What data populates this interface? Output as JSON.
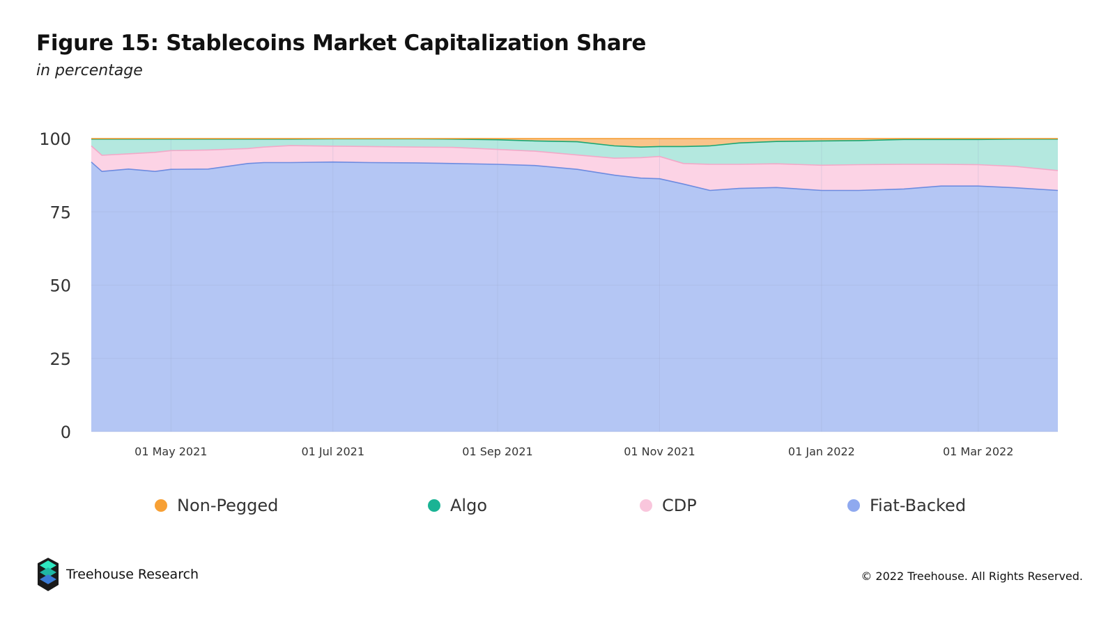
{
  "header": {
    "title": "Figure 15: Stablecoins Market Capitalization Share",
    "subtitle": "in percentage"
  },
  "footer": {
    "brand": "Treehouse Research",
    "copyright": "© 2022 Treehouse. All Rights Reserved."
  },
  "colors": {
    "Non-Pegged": "#f7a035",
    "Algo": "#1ab394",
    "CDP": "#f9c6dc",
    "Fiat-Backed": "#8fa9ef"
  },
  "chart_data": {
    "type": "area",
    "stacked": true,
    "title": "Figure 15: Stablecoins Market Capitalization Share",
    "subtitle": "in percentage",
    "xlabel": "",
    "ylabel": "",
    "ylim": [
      0,
      100
    ],
    "yticks": [
      0,
      25,
      50,
      75,
      100
    ],
    "xticks": [
      "01 May 2021",
      "01 Jul 2021",
      "01 Sep 2021",
      "01 Nov 2021",
      "01 Jan 2022",
      "01 Mar 2022"
    ],
    "xrange": [
      "2021-04-01",
      "2022-03-31"
    ],
    "grid": true,
    "legend_position": "bottom",
    "x": [
      "2021-04-01",
      "2021-04-05",
      "2021-04-15",
      "2021-04-25",
      "2021-05-01",
      "2021-05-15",
      "2021-05-30",
      "2021-06-05",
      "2021-06-15",
      "2021-07-01",
      "2021-07-15",
      "2021-08-01",
      "2021-08-15",
      "2021-09-01",
      "2021-09-15",
      "2021-10-01",
      "2021-10-15",
      "2021-10-25",
      "2021-11-01",
      "2021-11-10",
      "2021-11-20",
      "2021-12-01",
      "2021-12-15",
      "2022-01-01",
      "2022-01-15",
      "2022-02-01",
      "2022-02-15",
      "2022-03-01",
      "2022-03-15",
      "2022-03-31"
    ],
    "series": [
      {
        "name": "Fiat-Backed",
        "values": [
          92,
          88.8,
          89.6,
          88.8,
          89.5,
          89.6,
          91.5,
          91.8,
          91.8,
          92.0,
          91.8,
          91.7,
          91.5,
          91.2,
          90.8,
          89.5,
          87.5,
          86.5,
          86.3,
          84.5,
          82.3,
          83.0,
          83.3,
          82.3,
          82.3,
          82.8,
          83.8,
          83.8,
          83.2,
          82.3
        ]
      },
      {
        "name": "CDP",
        "values": [
          5.5,
          5.5,
          5.2,
          6.5,
          6.4,
          6.5,
          5.1,
          5.3,
          5.8,
          5.4,
          5.5,
          5.4,
          5.5,
          5.1,
          4.9,
          4.9,
          5.8,
          7.0,
          7.6,
          7.0,
          8.9,
          8.2,
          8.1,
          8.6,
          8.8,
          8.4,
          7.4,
          7.3,
          7.3,
          6.8
        ]
      },
      {
        "name": "Algo",
        "values": [
          2.3,
          5.5,
          5.0,
          4.5,
          3.9,
          3.7,
          3.2,
          2.7,
          2.2,
          2.5,
          2.6,
          2.8,
          2.8,
          3.3,
          3.5,
          4.5,
          4.2,
          3.6,
          3.4,
          5.8,
          6.3,
          7.3,
          7.6,
          8.3,
          8.2,
          8.5,
          8.5,
          8.6,
          9.3,
          10.7
        ]
      },
      {
        "name": "Non-Pegged",
        "values": [
          0.2,
          0.2,
          0.2,
          0.2,
          0.2,
          0.2,
          0.2,
          0.2,
          0.2,
          0.1,
          0.1,
          0.1,
          0.2,
          0.4,
          0.8,
          1.1,
          2.5,
          2.9,
          2.7,
          2.7,
          2.5,
          1.5,
          1.0,
          0.8,
          0.7,
          0.3,
          0.3,
          0.3,
          0.2,
          0.2
        ]
      }
    ]
  }
}
